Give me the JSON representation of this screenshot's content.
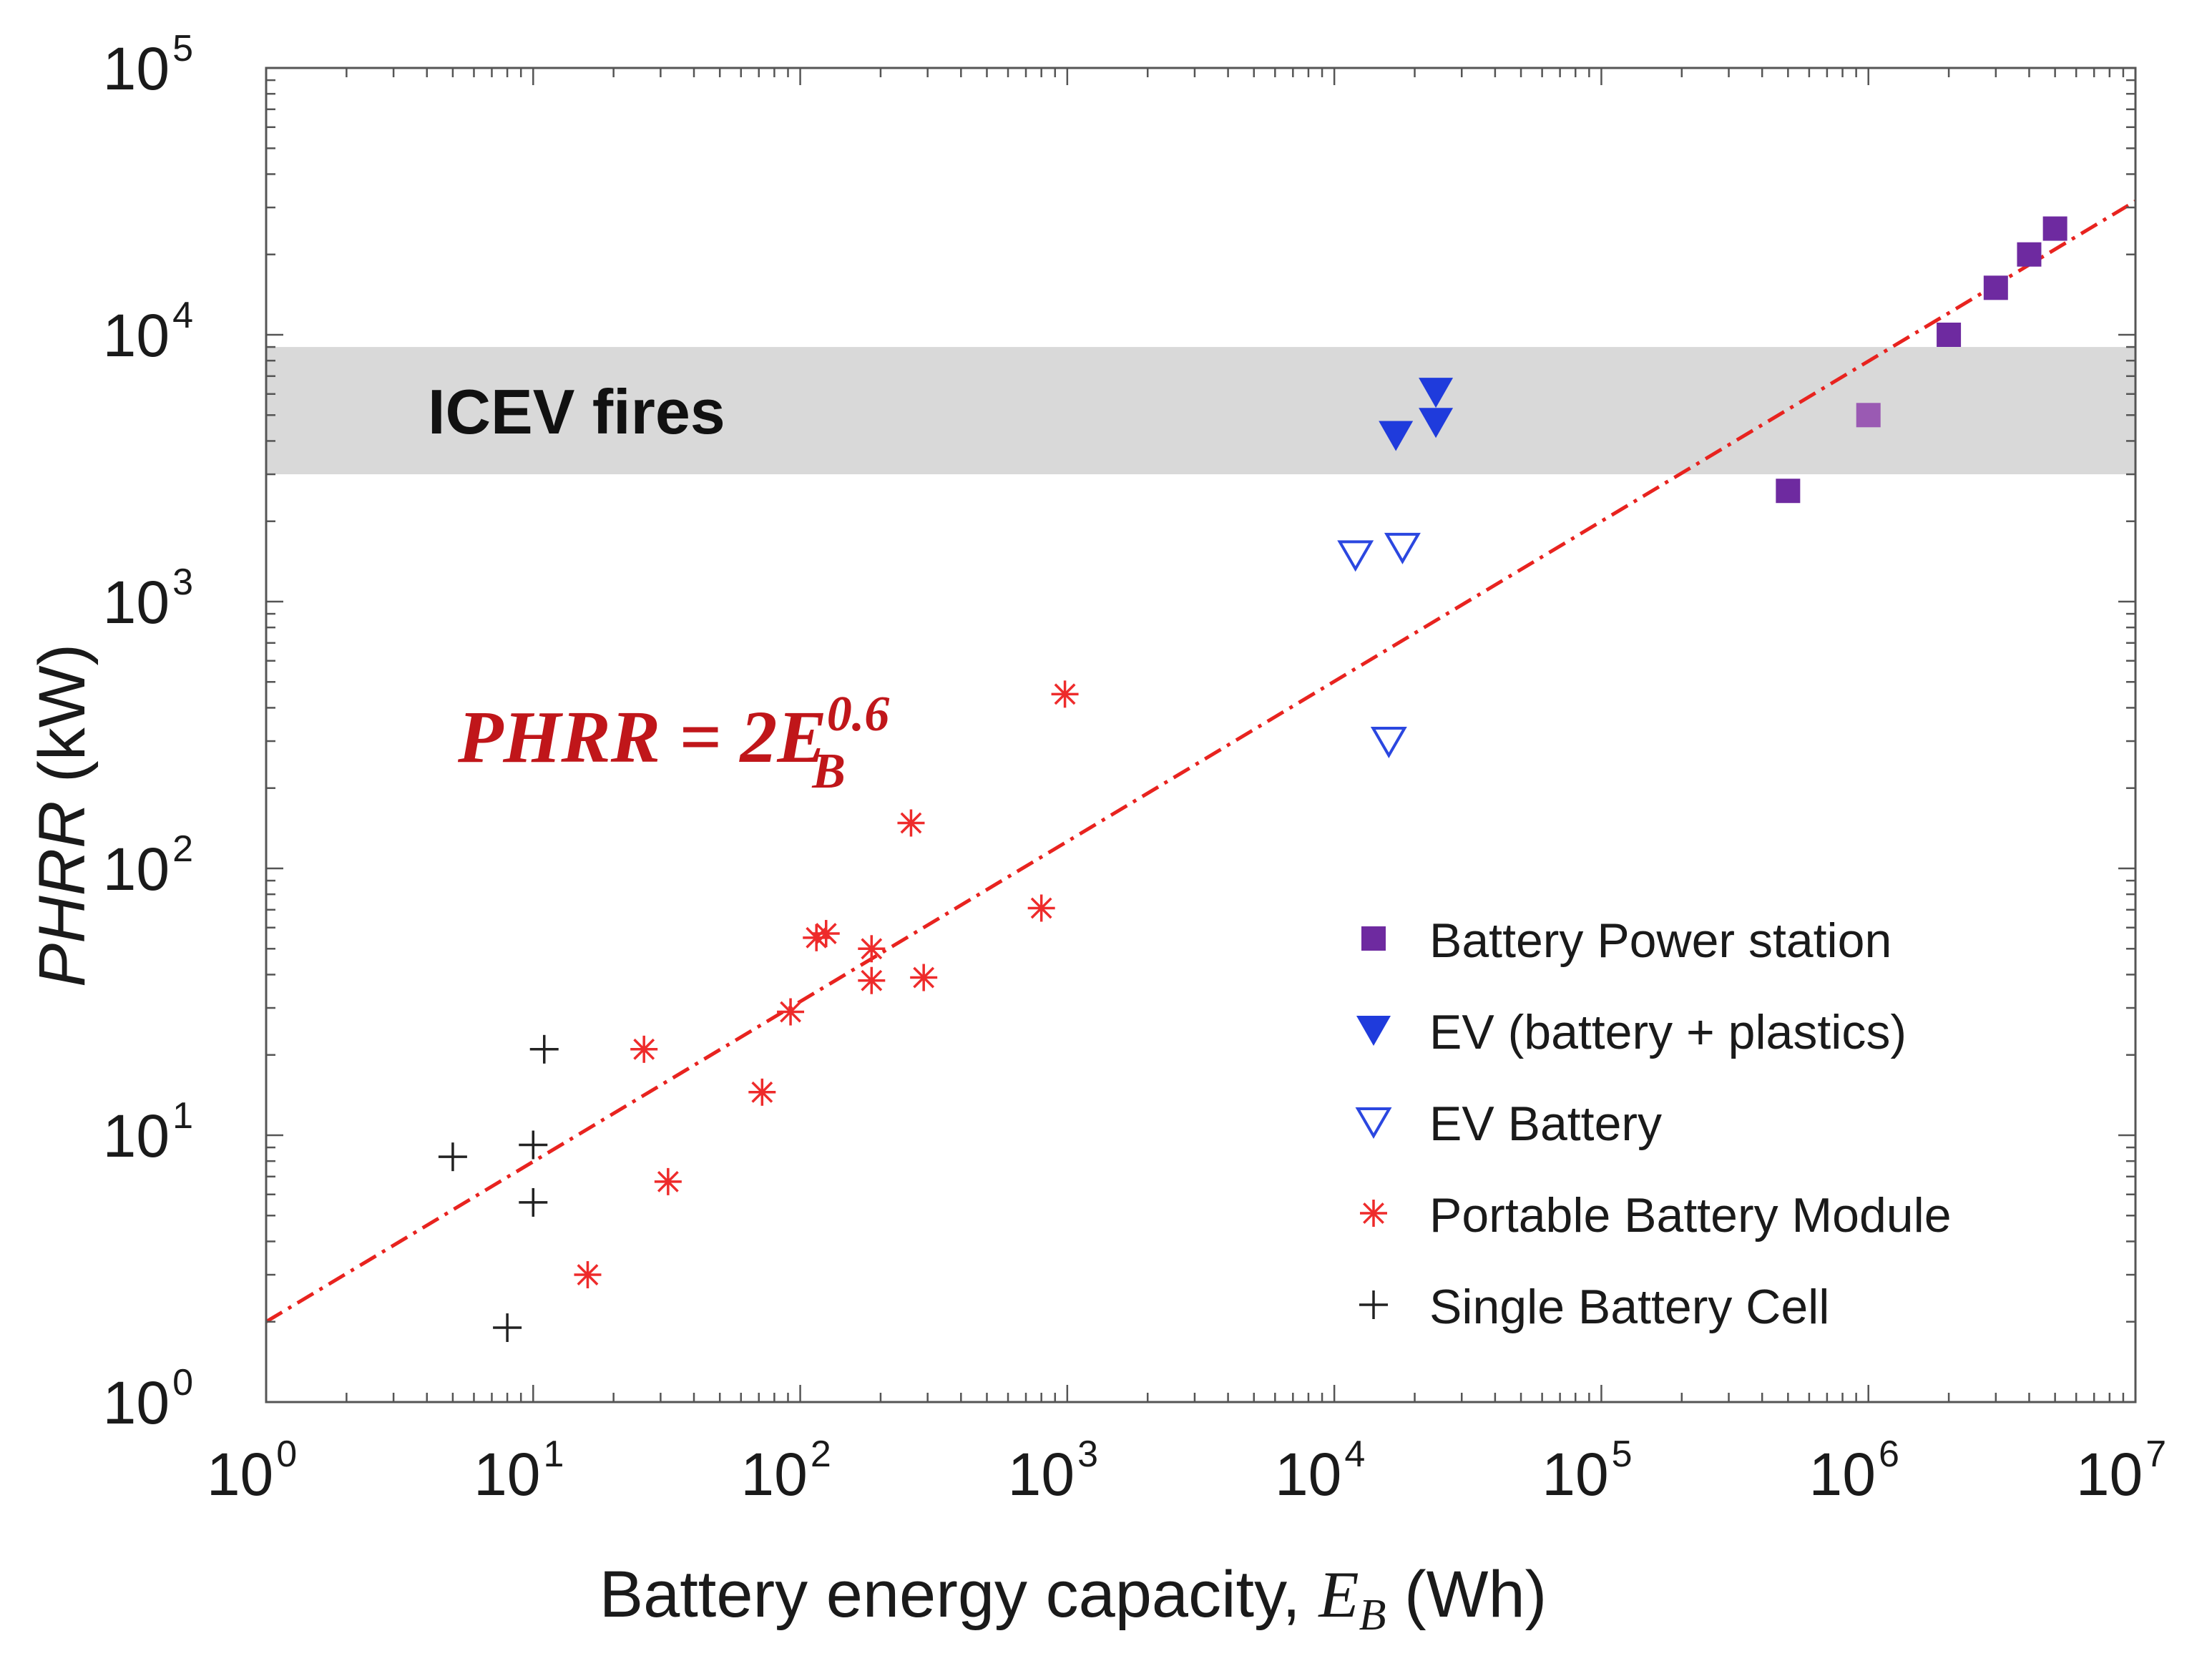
{
  "chart_data": {
    "type": "scatter",
    "x_scale": "log",
    "y_scale": "log",
    "xlim": [
      1,
      10000000
    ],
    "ylim": [
      1,
      100000
    ],
    "x_ticks": [
      {
        "value": 1,
        "base": "10",
        "exp": "0"
      },
      {
        "value": 10,
        "base": "10",
        "exp": "1"
      },
      {
        "value": 100,
        "base": "10",
        "exp": "2"
      },
      {
        "value": 1000,
        "base": "10",
        "exp": "3"
      },
      {
        "value": 10000,
        "base": "10",
        "exp": "4"
      },
      {
        "value": 100000,
        "base": "10",
        "exp": "5"
      },
      {
        "value": 1000000,
        "base": "10",
        "exp": "6"
      },
      {
        "value": 10000000,
        "base": "10",
        "exp": "7"
      }
    ],
    "y_ticks": [
      {
        "value": 1,
        "base": "10",
        "exp": "0"
      },
      {
        "value": 10,
        "base": "10",
        "exp": "1"
      },
      {
        "value": 100,
        "base": "10",
        "exp": "2"
      },
      {
        "value": 1000,
        "base": "10",
        "exp": "3"
      },
      {
        "value": 10000,
        "base": "10",
        "exp": "4"
      },
      {
        "value": 100000,
        "base": "10",
        "exp": "5"
      }
    ],
    "xlabel": {
      "text": "Battery energy capacity, ",
      "var": "E",
      "sub": "B",
      "unit": " (Wh)"
    },
    "ylabel": {
      "var": "PHRR",
      "unit": " (kW)"
    },
    "band": {
      "label": "ICEV fires",
      "ymin": 3000,
      "ymax": 9000,
      "color": "#d9d9d9"
    },
    "fit_line": {
      "coefficient": 2,
      "exponent": 0.6,
      "color": "#e8231f",
      "style": "dash-dot"
    },
    "equation": {
      "lhs": "PHRR = 2E",
      "sub": "B",
      "sup": "0.6",
      "color": "#c0161a"
    },
    "legend_position": "lower-right",
    "series": [
      {
        "name": "Battery Power station",
        "marker": "square",
        "color": "#6e2aa0",
        "points": [
          {
            "x": 500000,
            "y": 2600
          },
          {
            "x": 1000000,
            "y": 5000,
            "color": "#9a5ab3"
          },
          {
            "x": 2000000,
            "y": 10000
          },
          {
            "x": 3000000,
            "y": 15000
          },
          {
            "x": 4000000,
            "y": 20000
          },
          {
            "x": 5000000,
            "y": 25000
          }
        ]
      },
      {
        "name": "EV (battery + plastics)",
        "marker": "triangle-down-filled",
        "color": "#1f3bdc",
        "points": [
          {
            "x": 17000,
            "y": 4200
          },
          {
            "x": 24000,
            "y": 4700
          },
          {
            "x": 24000,
            "y": 6100
          }
        ]
      },
      {
        "name": "EV Battery",
        "marker": "triangle-down-open",
        "color": "#2b47e0",
        "points": [
          {
            "x": 12000,
            "y": 1500
          },
          {
            "x": 18000,
            "y": 1600
          },
          {
            "x": 16000,
            "y": 300
          }
        ]
      },
      {
        "name": "Portable Battery Module",
        "marker": "asterisk",
        "color": "#ee2b2b",
        "points": [
          {
            "x": 16,
            "y": 3
          },
          {
            "x": 26,
            "y": 21
          },
          {
            "x": 32,
            "y": 6.7
          },
          {
            "x": 72,
            "y": 14.5
          },
          {
            "x": 92,
            "y": 29
          },
          {
            "x": 115,
            "y": 55
          },
          {
            "x": 125,
            "y": 57
          },
          {
            "x": 185,
            "y": 50
          },
          {
            "x": 185,
            "y": 38
          },
          {
            "x": 290,
            "y": 39
          },
          {
            "x": 260,
            "y": 148
          },
          {
            "x": 800,
            "y": 71
          },
          {
            "x": 980,
            "y": 450
          }
        ]
      },
      {
        "name": "Single Battery Cell",
        "marker": "plus",
        "color": "#222222",
        "points": [
          {
            "x": 5,
            "y": 8.3
          },
          {
            "x": 10,
            "y": 9.2
          },
          {
            "x": 10,
            "y": 5.6
          },
          {
            "x": 11,
            "y": 21
          },
          {
            "x": 8,
            "y": 1.9
          }
        ]
      }
    ]
  }
}
